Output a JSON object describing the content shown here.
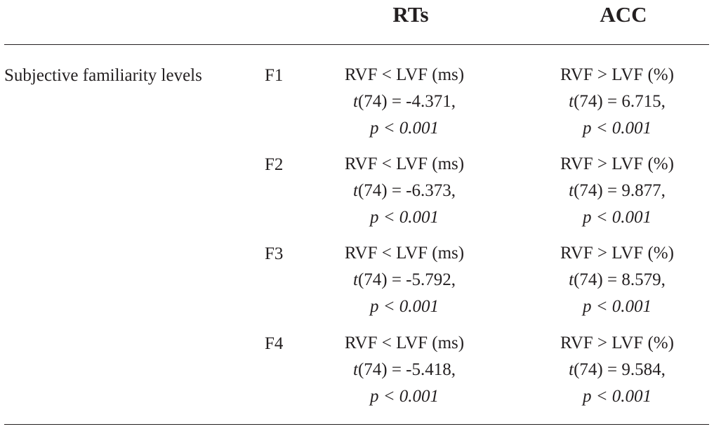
{
  "columns": {
    "rts": "RTs",
    "acc": "ACC"
  },
  "row_group_label": "Subjective familiarity levels",
  "rows": [
    {
      "level": "F1",
      "rts": {
        "comparison": "RVF < LVF (ms)",
        "t_label": "t",
        "t_rest": "(74) = -4.371,",
        "p_text": "p < 0.001"
      },
      "acc": {
        "comparison": "RVF > LVF (%)",
        "t_label": "t",
        "t_rest": "(74) = 6.715,",
        "p_text": "p < 0.001"
      }
    },
    {
      "level": "F2",
      "rts": {
        "comparison": "RVF < LVF (ms)",
        "t_label": "t",
        "t_rest": "(74) = -6.373,",
        "p_text": "p < 0.001"
      },
      "acc": {
        "comparison": "RVF > LVF (%)",
        "t_label": "t",
        "t_rest": "(74) = 9.877,",
        "p_text": "p < 0.001"
      }
    },
    {
      "level": "F3",
      "rts": {
        "comparison": "RVF < LVF (ms)",
        "t_label": "t",
        "t_rest": "(74) = -5.792,",
        "p_text": "p < 0.001"
      },
      "acc": {
        "comparison": "RVF > LVF (%)",
        "t_label": "t",
        "t_rest": "(74) = 8.579,",
        "p_text": "p < 0.001"
      }
    },
    {
      "level": "F4",
      "rts": {
        "comparison": "RVF < LVF (ms)",
        "t_label": "t",
        "t_rest": "(74) = -5.418,",
        "p_text": "p < 0.001"
      },
      "acc": {
        "comparison": "RVF > LVF (%)",
        "t_label": "t",
        "t_rest": "(74) = 9.584,",
        "p_text": "p < 0.001"
      }
    }
  ]
}
